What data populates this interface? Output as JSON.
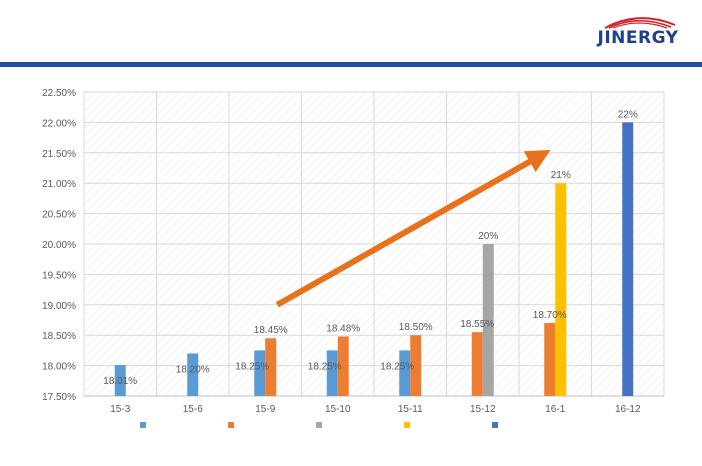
{
  "brand": {
    "name": "JINERGY",
    "colors": {
      "text": "#1f3f8f",
      "swoosh": "#d0202e",
      "bar": "#1f4ea3"
    }
  },
  "chart_data": {
    "type": "bar",
    "categories": [
      "15-3",
      "15-6",
      "15-9",
      "15-10",
      "15-11",
      "15-12",
      "16-1",
      "16-12"
    ],
    "ylim": [
      0.175,
      0.225
    ],
    "yticks": [
      "17.50%",
      "18.00%",
      "18.50%",
      "19.00%",
      "19.50%",
      "20.00%",
      "20.50%",
      "21.00%",
      "21.50%",
      "22.00%",
      "22.50%"
    ],
    "grid": true,
    "legend_position": "bottom",
    "series": [
      {
        "color": "#5b9bd5",
        "values": [
          0.1801,
          0.182,
          0.1825,
          0.1825,
          0.1825,
          null,
          null,
          null
        ],
        "labels": [
          "18.01%",
          "18.20%",
          "18.25%",
          "18.25%",
          "18.25%",
          null,
          null,
          null
        ]
      },
      {
        "color": "#ed7d31",
        "values": [
          null,
          null,
          0.1845,
          0.1848,
          0.185,
          0.1855,
          0.187,
          null
        ],
        "labels": [
          null,
          null,
          "18.45%",
          "18.48%",
          "18.50%",
          "18.55%",
          "18.70%",
          null
        ]
      },
      {
        "color": "#a5a5a5",
        "values": [
          null,
          null,
          null,
          null,
          null,
          0.2,
          null,
          null
        ],
        "labels": [
          null,
          null,
          null,
          null,
          null,
          "20%",
          null,
          null
        ]
      },
      {
        "color": "#ffc000",
        "values": [
          null,
          null,
          null,
          null,
          null,
          null,
          0.21,
          null
        ],
        "labels": [
          null,
          null,
          null,
          null,
          null,
          null,
          "21%",
          null
        ]
      },
      {
        "color": "#4472c4",
        "values": [
          null,
          null,
          null,
          null,
          null,
          null,
          null,
          0.22
        ],
        "labels": [
          null,
          null,
          null,
          null,
          null,
          null,
          null,
          "22%"
        ]
      }
    ],
    "trend_arrow": {
      "color": "#e8711c",
      "from": [
        "15-9",
        0.19
      ],
      "to": [
        "16-1",
        0.2148
      ]
    }
  }
}
